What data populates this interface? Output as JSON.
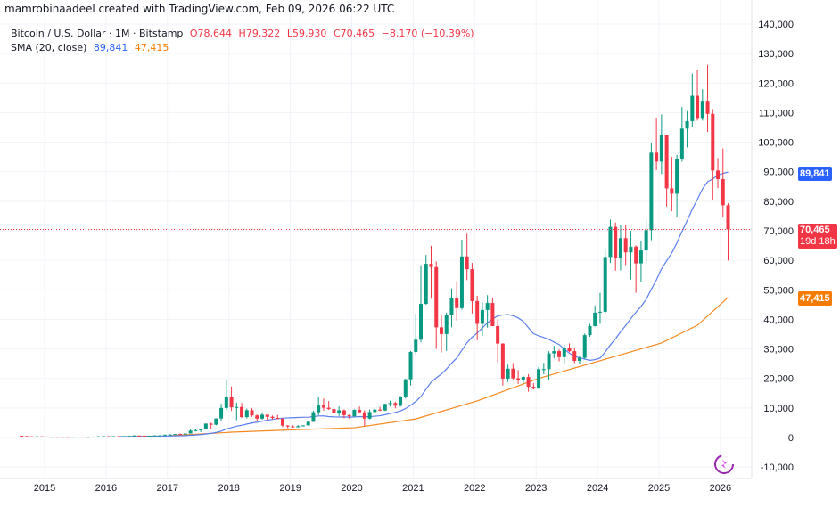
{
  "credit": "mamrobinaadeel created with TradingView.com, Feb 09, 2026 06:22 UTC",
  "legend": {
    "symbol": "Bitcoin / U.S. Dollar · 1M · Bitstamp",
    "open": "O78,644",
    "high": "H79,322",
    "low": "L59,930",
    "close": "C70,465",
    "change": "−8,170 (−10.39%)",
    "sma_label": "SMA (20, close)",
    "sma_value_1": "89,841",
    "sma_value_2": "47,415"
  },
  "tags": {
    "sma1": "89,841",
    "price": "70,465",
    "countdown": "19d 18h",
    "sma2": "47,415"
  },
  "colors": {
    "up": "#089981",
    "down": "#f23645",
    "sma1": "#5b7ff0",
    "sma2": "#f5891f",
    "grid": "#f0f3fa"
  },
  "chart_data": {
    "type": "candlestick",
    "interval": "1M",
    "ylim": [
      -10000,
      140000
    ],
    "y_ticks": [
      "140,000",
      "130,000",
      "120,000",
      "110,000",
      "100,000",
      "90,000",
      "80,000",
      "70,000",
      "60,000",
      "50,000",
      "40,000",
      "30,000",
      "20,000",
      "10,000",
      "0",
      "-10,000"
    ],
    "x_ticks": [
      "2015",
      "2016",
      "2017",
      "2018",
      "2019",
      "2020",
      "2021",
      "2022",
      "2023",
      "2024",
      "2025",
      "2026"
    ],
    "grid": true,
    "current_price": 70465,
    "candles_columns": [
      "month",
      "open",
      "high",
      "low",
      "close"
    ],
    "candles": [
      [
        "2014-08",
        589,
        600,
        440,
        480
      ],
      [
        "2014-09",
        480,
        490,
        370,
        387
      ],
      [
        "2014-10",
        387,
        415,
        290,
        338
      ],
      [
        "2014-11",
        338,
        460,
        325,
        378
      ],
      [
        "2014-12",
        378,
        385,
        305,
        320
      ],
      [
        "2015-01",
        320,
        320,
        152,
        217
      ],
      [
        "2015-02",
        217,
        265,
        210,
        254
      ],
      [
        "2015-03",
        254,
        300,
        237,
        244
      ],
      [
        "2015-04",
        244,
        262,
        214,
        236
      ],
      [
        "2015-05",
        236,
        247,
        230,
        230
      ],
      [
        "2015-06",
        230,
        268,
        222,
        263
      ],
      [
        "2015-07",
        263,
        318,
        253,
        284
      ],
      [
        "2015-08",
        284,
        285,
        199,
        230
      ],
      [
        "2015-09",
        230,
        248,
        225,
        236
      ],
      [
        "2015-10",
        236,
        335,
        235,
        314
      ],
      [
        "2015-11",
        314,
        505,
        310,
        377
      ],
      [
        "2015-12",
        377,
        465,
        350,
        430
      ],
      [
        "2016-01",
        430,
        465,
        355,
        368
      ],
      [
        "2016-02",
        368,
        445,
        365,
        437
      ],
      [
        "2016-03",
        437,
        440,
        405,
        416
      ],
      [
        "2016-04",
        416,
        470,
        415,
        448
      ],
      [
        "2016-05",
        448,
        550,
        440,
        531
      ],
      [
        "2016-06",
        531,
        780,
        526,
        673
      ],
      [
        "2016-07",
        673,
        680,
        470,
        624
      ],
      [
        "2016-08",
        624,
        625,
        510,
        575
      ],
      [
        "2016-09",
        575,
        630,
        570,
        609
      ],
      [
        "2016-10",
        609,
        720,
        605,
        698
      ],
      [
        "2016-11",
        698,
        750,
        690,
        742
      ],
      [
        "2016-12",
        742,
        975,
        740,
        963
      ],
      [
        "2017-01",
        963,
        1160,
        750,
        970
      ],
      [
        "2017-02",
        970,
        1210,
        920,
        1190
      ],
      [
        "2017-03",
        1190,
        1350,
        890,
        1080
      ],
      [
        "2017-04",
        1080,
        1350,
        1050,
        1348
      ],
      [
        "2017-05",
        1348,
        2760,
        1340,
        2300
      ],
      [
        "2017-06",
        2300,
        3000,
        2070,
        2480
      ],
      [
        "2017-07",
        2480,
        2970,
        1830,
        2875
      ],
      [
        "2017-08",
        2875,
        4760,
        2680,
        4700
      ],
      [
        "2017-09",
        4700,
        4980,
        2970,
        4340
      ],
      [
        "2017-10",
        4340,
        6470,
        4110,
        6450
      ],
      [
        "2017-11",
        6450,
        11400,
        5500,
        10000
      ],
      [
        "2017-12",
        10000,
        19666,
        9300,
        13860
      ],
      [
        "2018-01",
        13860,
        17250,
        9000,
        10220
      ],
      [
        "2018-02",
        10220,
        11800,
        5870,
        10330
      ],
      [
        "2018-03",
        10330,
        11700,
        6600,
        6930
      ],
      [
        "2018-04",
        6930,
        9770,
        6430,
        9240
      ],
      [
        "2018-05",
        9240,
        10000,
        7030,
        7500
      ],
      [
        "2018-06",
        7500,
        7770,
        5750,
        6400
      ],
      [
        "2018-07",
        6400,
        8500,
        6070,
        7730
      ],
      [
        "2018-08",
        7730,
        7760,
        5880,
        7020
      ],
      [
        "2018-09",
        7020,
        7420,
        6100,
        6630
      ],
      [
        "2018-10",
        6630,
        7680,
        6200,
        6370
      ],
      [
        "2018-11",
        6370,
        6580,
        3500,
        4040
      ],
      [
        "2018-12",
        4040,
        4240,
        3120,
        3740
      ],
      [
        "2019-01",
        3740,
        4100,
        3350,
        3460
      ],
      [
        "2019-02",
        3460,
        4200,
        3400,
        3830
      ],
      [
        "2019-03",
        3830,
        4140,
        3730,
        4100
      ],
      [
        "2019-04",
        4100,
        5630,
        4050,
        5320
      ],
      [
        "2019-05",
        5320,
        9070,
        5320,
        8560
      ],
      [
        "2019-06",
        8560,
        13880,
        7510,
        10820
      ],
      [
        "2019-07",
        10820,
        13200,
        9070,
        10080
      ],
      [
        "2019-08",
        10080,
        12330,
        9330,
        9630
      ],
      [
        "2019-09",
        9630,
        10950,
        7710,
        8290
      ],
      [
        "2019-10",
        8290,
        10540,
        7300,
        9200
      ],
      [
        "2019-11",
        9200,
        9500,
        6520,
        7570
      ],
      [
        "2019-12",
        7570,
        7750,
        6430,
        7190
      ],
      [
        "2020-01",
        7190,
        9570,
        6860,
        9350
      ],
      [
        "2020-02",
        9350,
        10500,
        8450,
        8540
      ],
      [
        "2020-03",
        8540,
        9190,
        3860,
        6410
      ],
      [
        "2020-04",
        6410,
        9460,
        6150,
        8620
      ],
      [
        "2020-05",
        8620,
        10080,
        8120,
        9450
      ],
      [
        "2020-06",
        9450,
        10400,
        8900,
        9140
      ],
      [
        "2020-07",
        9140,
        11440,
        8970,
        11350
      ],
      [
        "2020-08",
        11350,
        12480,
        10520,
        11660
      ],
      [
        "2020-09",
        11660,
        12090,
        9880,
        10780
      ],
      [
        "2020-10",
        10780,
        14100,
        10420,
        13800
      ],
      [
        "2020-11",
        13800,
        19860,
        13200,
        19700
      ],
      [
        "2020-12",
        19700,
        29300,
        17600,
        28990
      ],
      [
        "2021-01",
        28990,
        41950,
        28130,
        33110
      ],
      [
        "2021-02",
        33110,
        58350,
        32300,
        45240
      ],
      [
        "2021-03",
        45240,
        61800,
        45000,
        58800
      ],
      [
        "2021-04",
        58800,
        64900,
        47000,
        57700
      ],
      [
        "2021-05",
        57700,
        59600,
        30000,
        37300
      ],
      [
        "2021-06",
        37300,
        41300,
        28800,
        35040
      ],
      [
        "2021-07",
        35040,
        42300,
        29300,
        41460
      ],
      [
        "2021-08",
        41460,
        50500,
        37300,
        47130
      ],
      [
        "2021-09",
        47130,
        52900,
        39600,
        43820
      ],
      [
        "2021-10",
        43820,
        67000,
        43300,
        61300
      ],
      [
        "2021-11",
        61300,
        69000,
        53300,
        57000
      ],
      [
        "2021-12",
        57000,
        59100,
        42000,
        46200
      ],
      [
        "2022-01",
        46200,
        47990,
        32900,
        38480
      ],
      [
        "2022-02",
        38480,
        45800,
        34300,
        43190
      ],
      [
        "2022-03",
        43190,
        48200,
        37200,
        45540
      ],
      [
        "2022-04",
        45540,
        47450,
        37700,
        37710
      ],
      [
        "2022-05",
        37710,
        40000,
        25400,
        31790
      ],
      [
        "2022-06",
        31790,
        31950,
        17600,
        19940
      ],
      [
        "2022-07",
        19940,
        24650,
        18800,
        23300
      ],
      [
        "2022-08",
        23300,
        25200,
        19550,
        20050
      ],
      [
        "2022-09",
        20050,
        22800,
        18150,
        19430
      ],
      [
        "2022-10",
        19430,
        20990,
        18200,
        20500
      ],
      [
        "2022-11",
        20500,
        21450,
        15480,
        17170
      ],
      [
        "2022-12",
        17170,
        18400,
        16260,
        16540
      ],
      [
        "2023-01",
        16540,
        23950,
        16500,
        23130
      ],
      [
        "2023-02",
        23130,
        25250,
        21400,
        23150
      ],
      [
        "2023-03",
        23150,
        29200,
        19550,
        28480
      ],
      [
        "2023-04",
        28480,
        31000,
        26900,
        29250
      ],
      [
        "2023-05",
        29250,
        29800,
        25800,
        27220
      ],
      [
        "2023-06",
        27220,
        31400,
        24800,
        30480
      ],
      [
        "2023-07",
        30480,
        31850,
        28900,
        29230
      ],
      [
        "2023-08",
        29230,
        30200,
        25170,
        25940
      ],
      [
        "2023-09",
        25940,
        27500,
        24900,
        26970
      ],
      [
        "2023-10",
        26970,
        35200,
        26550,
        34660
      ],
      [
        "2023-11",
        34660,
        38450,
        34100,
        37720
      ],
      [
        "2023-12",
        37720,
        44700,
        37600,
        42280
      ],
      [
        "2024-01",
        42280,
        48950,
        38500,
        42580
      ],
      [
        "2024-02",
        42580,
        64000,
        41900,
        61130
      ],
      [
        "2024-03",
        61130,
        73800,
        59100,
        71330
      ],
      [
        "2024-04",
        71330,
        72800,
        56500,
        60640
      ],
      [
        "2024-05",
        60640,
        71950,
        56550,
        67490
      ],
      [
        "2024-06",
        67490,
        71950,
        58400,
        62680
      ],
      [
        "2024-07",
        62680,
        70000,
        53500,
        64620
      ],
      [
        "2024-08",
        64620,
        65100,
        49000,
        58970
      ],
      [
        "2024-09",
        58970,
        66500,
        52550,
        63330
      ],
      [
        "2024-10",
        63330,
        73600,
        58900,
        70220
      ],
      [
        "2024-11",
        70220,
        99600,
        66800,
        96450
      ],
      [
        "2024-12",
        96450,
        108300,
        90500,
        93430
      ],
      [
        "2025-01",
        93430,
        109400,
        89200,
        102400
      ],
      [
        "2025-02",
        102400,
        102500,
        78200,
        84350
      ],
      [
        "2025-03",
        84350,
        95000,
        76600,
        82550
      ],
      [
        "2025-04",
        82550,
        95750,
        74500,
        94200
      ],
      [
        "2025-05",
        94200,
        111900,
        93400,
        104600
      ],
      [
        "2025-06",
        104600,
        110500,
        98200,
        107100
      ],
      [
        "2025-07",
        107100,
        123200,
        105100,
        115700
      ],
      [
        "2025-08",
        115700,
        124500,
        107300,
        108200
      ],
      [
        "2025-09",
        108200,
        117900,
        107300,
        114000
      ],
      [
        "2025-10",
        114000,
        126200,
        103500,
        109600
      ],
      [
        "2025-11",
        109600,
        111200,
        80500,
        90400
      ],
      [
        "2025-12",
        90400,
        94600,
        84400,
        87500
      ],
      [
        "2026-01",
        87500,
        97900,
        74500,
        78644
      ],
      [
        "2026-02",
        78644,
        79322,
        59930,
        70465
      ]
    ],
    "series": [
      {
        "name": "SMA (20, close)",
        "type": "sma",
        "period": 20,
        "last": 89841
      },
      {
        "name": "SMA (20, close)",
        "type": "line",
        "last": 47415,
        "points": [
          [
            "2017-01",
            600
          ],
          [
            "2018-01",
            1800
          ],
          [
            "2019-01",
            2600
          ],
          [
            "2020-01",
            3300
          ],
          [
            "2021-01",
            6300
          ],
          [
            "2022-01",
            12400
          ],
          [
            "2023-01",
            20000
          ],
          [
            "2024-01",
            26000
          ],
          [
            "2025-01",
            32000
          ],
          [
            "2025-08",
            38000
          ],
          [
            "2026-02",
            47415
          ]
        ]
      }
    ]
  }
}
